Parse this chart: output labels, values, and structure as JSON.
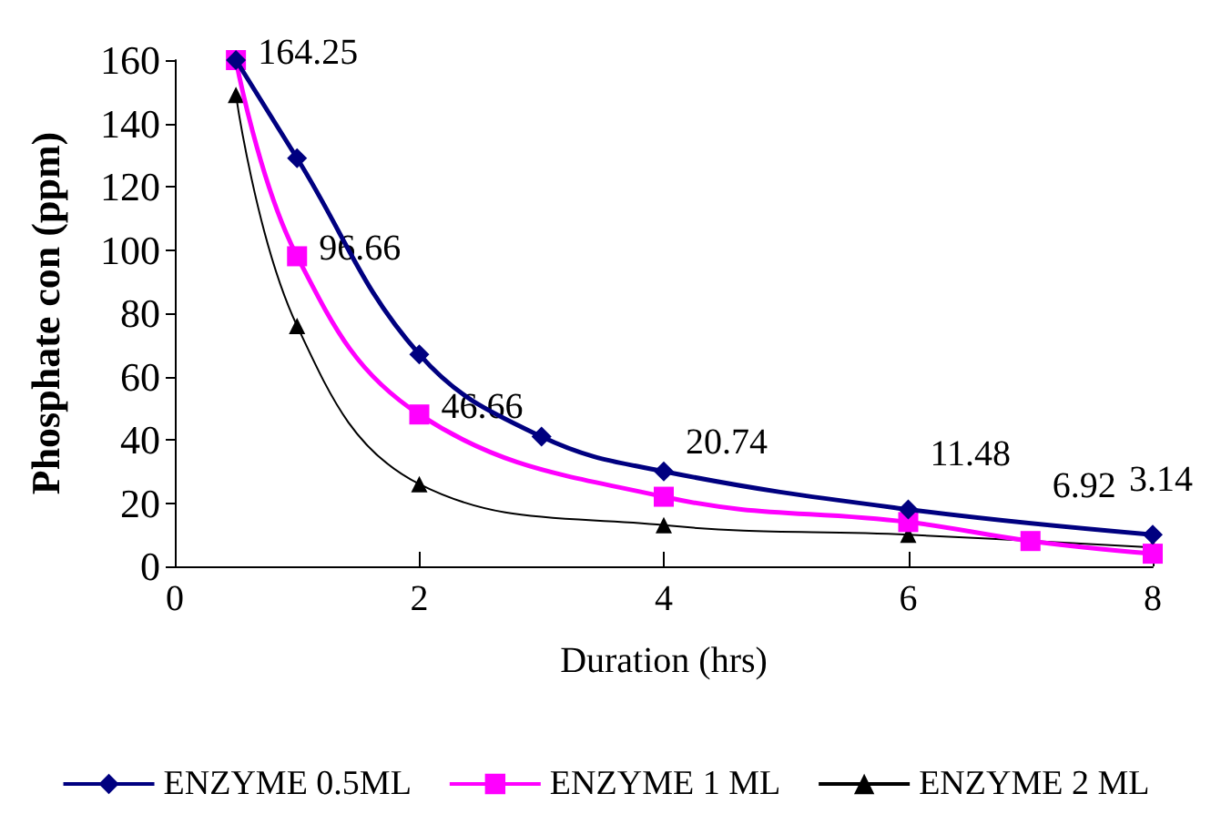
{
  "chart_data": {
    "type": "line",
    "xlabel": "Duration (hrs)",
    "ylabel": "Phosphate con (ppm)",
    "xlim": [
      0,
      8
    ],
    "xticks": [
      0,
      2,
      4,
      6,
      8
    ],
    "ylim": [
      0,
      160
    ],
    "yticks": [
      0,
      20,
      40,
      60,
      80,
      100,
      120,
      140,
      160
    ],
    "grid": false,
    "legend": "bottom",
    "series": [
      {
        "name": "ENZYME 0.5ML",
        "color": "#000080",
        "marker": "diamond",
        "x": [
          0.5,
          1,
          2,
          3,
          4,
          6,
          8
        ],
        "values": [
          160,
          129,
          67,
          41,
          30,
          18,
          10
        ]
      },
      {
        "name": "ENZYME 1 ML",
        "color": "#ff00ff",
        "marker": "square",
        "x": [
          0.5,
          1,
          2,
          4,
          6,
          7,
          8
        ],
        "values": [
          160,
          98,
          48,
          22,
          14,
          8,
          4
        ]
      },
      {
        "name": "ENZYME 2 ML",
        "color": "#000000",
        "marker": "triangle",
        "x": [
          0.5,
          1,
          2,
          4,
          6,
          8
        ],
        "values": [
          149,
          76,
          26,
          13,
          10,
          6
        ]
      }
    ],
    "annotations": [
      {
        "text": "164.25",
        "x": 0.5,
        "y": 160
      },
      {
        "text": "96.66",
        "x": 1,
        "y": 98
      },
      {
        "text": "46.66",
        "x": 2,
        "y": 48
      },
      {
        "text": "20.74",
        "x": 4,
        "y": 22
      },
      {
        "text": "11.48",
        "x": 6,
        "y": 18
      },
      {
        "text": "6.92",
        "x": 7,
        "y": 8
      },
      {
        "text": "3.14",
        "x": 8,
        "y": 10
      }
    ]
  }
}
